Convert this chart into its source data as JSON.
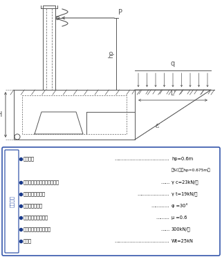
{
  "bg_color": "#ffffff",
  "line_color": "#555555",
  "blue_color": "#3355aa",
  "bullet_color": "#1a3a8a",
  "side_label": "設計条件",
  "conditions": [
    {
      "label": "衝突高さ",
      "has_bullet": true,
      "dots": "………………………………",
      "value": "hp=0.6m"
    },
    {
      "label": "（SC種はhp=0.675m）",
      "has_bullet": false,
      "dots": "",
      "value": ""
    },
    {
      "label": "コンクリートの単位体積重量",
      "has_bullet": true,
      "dots": "……",
      "value": "γ c=23kN/㎡"
    },
    {
      "label": "土の単位体積重量",
      "has_bullet": true,
      "dots": "…………………",
      "value": "γ t=19kN/㎡"
    },
    {
      "label": "土の内部摩擦角",
      "has_bullet": true,
      "dots": "…………",
      "value": "φ =30°"
    },
    {
      "label": "基礎地盤の摩擦係数",
      "has_bullet": true,
      "dots": "………",
      "value": "μ =0.6"
    },
    {
      "label": "基礎地盤の許容支持力",
      "has_bullet": true,
      "dots": "……",
      "value": "300kN/㎡"
    },
    {
      "label": "輪荷重",
      "has_bullet": true,
      "dots": "………………………………",
      "value": "Wt=25kN"
    }
  ]
}
